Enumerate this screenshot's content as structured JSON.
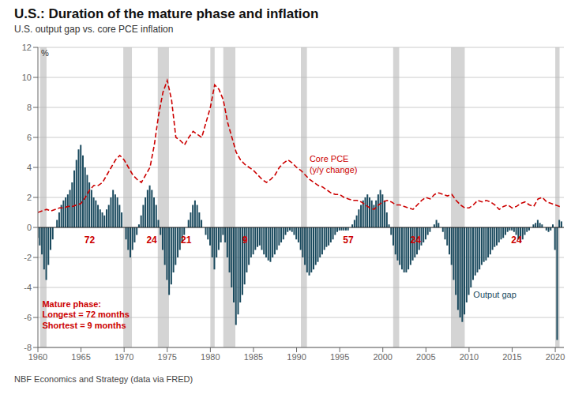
{
  "chart_data": {
    "type": "combo",
    "title": "U.S.: Duration of the mature phase and inflation",
    "subtitle": "U.S. output gap vs. core PCE inflation",
    "footer": "NBF Economics and Strategy (data via FRED)",
    "ylabel": "%",
    "ylim": [
      -8,
      12
    ],
    "yticks": [
      -8,
      -6,
      -4,
      -2,
      0,
      2,
      4,
      6,
      8,
      10,
      12
    ],
    "xlim": [
      1960,
      2021
    ],
    "xticks": [
      1960,
      1965,
      1970,
      1975,
      1980,
      1985,
      1990,
      1995,
      2000,
      2005,
      2010,
      2015,
      2020
    ],
    "grid": "y",
    "hlines": [
      0
    ],
    "recession_color": "#b8b8b8",
    "recessions": [
      [
        1960.25,
        1961.0
      ],
      [
        1969.9,
        1970.9
      ],
      [
        1973.9,
        1975.2
      ],
      [
        1980.0,
        1980.5
      ],
      [
        1981.5,
        1982.9
      ],
      [
        1990.5,
        1991.2
      ],
      [
        2001.2,
        2001.9
      ],
      [
        2007.9,
        2009.5
      ],
      [
        2020.0,
        2020.5
      ]
    ],
    "number_labels": [
      {
        "x": 1966.0,
        "y": -0.5,
        "text": "72",
        "color": "#cc0000"
      },
      {
        "x": 1973.2,
        "y": -0.5,
        "text": "24",
        "color": "#cc0000"
      },
      {
        "x": 1977.2,
        "y": -0.5,
        "text": "21",
        "color": "#cc0000"
      },
      {
        "x": 1984.0,
        "y": -0.5,
        "text": "9",
        "color": "#cc0000"
      },
      {
        "x": 1996.0,
        "y": -0.5,
        "text": "57",
        "color": "#cc0000"
      },
      {
        "x": 2003.8,
        "y": -0.5,
        "text": "24",
        "color": "#cc0000"
      },
      {
        "x": 2015.5,
        "y": -0.5,
        "text": "24",
        "color": "#cc0000"
      }
    ],
    "annotations": [
      {
        "x": 1991.5,
        "y": 4.2,
        "text": "Core PCE\n(y/y change)",
        "color": "#cc0000"
      },
      {
        "x": 2010.5,
        "y": -4.5,
        "text": "Output gap",
        "color": "#1a4a5e"
      }
    ],
    "notes": [
      {
        "x": 1960.5,
        "y": -4.8,
        "text": "Mature phase:\nLongest = 72 months\nShortest = 9 months",
        "color": "#cc0000"
      }
    ],
    "series": [
      {
        "type": "bar",
        "color": "#1a4a5e",
        "x": [
          1960.0,
          1960.25,
          1960.5,
          1960.75,
          1961.0,
          1961.25,
          1961.5,
          1961.75,
          1962.0,
          1962.25,
          1962.5,
          1962.75,
          1963.0,
          1963.25,
          1963.5,
          1963.75,
          1964.0,
          1964.25,
          1964.5,
          1964.75,
          1965.0,
          1965.25,
          1965.5,
          1965.75,
          1966.0,
          1966.25,
          1966.5,
          1966.75,
          1967.0,
          1967.25,
          1967.5,
          1967.75,
          1968.0,
          1968.25,
          1968.5,
          1968.75,
          1969.0,
          1969.25,
          1969.5,
          1969.75,
          1970.0,
          1970.25,
          1970.5,
          1970.75,
          1971.0,
          1971.25,
          1971.5,
          1971.75,
          1972.0,
          1972.25,
          1972.5,
          1972.75,
          1973.0,
          1973.25,
          1973.5,
          1973.75,
          1974.0,
          1974.25,
          1974.5,
          1974.75,
          1975.0,
          1975.25,
          1975.5,
          1975.75,
          1976.0,
          1976.25,
          1976.5,
          1976.75,
          1977.0,
          1977.25,
          1977.5,
          1977.75,
          1978.0,
          1978.25,
          1978.5,
          1978.75,
          1979.0,
          1979.25,
          1979.5,
          1979.75,
          1980.0,
          1980.25,
          1980.5,
          1980.75,
          1981.0,
          1981.25,
          1981.5,
          1981.75,
          1982.0,
          1982.25,
          1982.5,
          1982.75,
          1983.0,
          1983.25,
          1983.5,
          1983.75,
          1984.0,
          1984.25,
          1984.5,
          1984.75,
          1985.0,
          1985.25,
          1985.5,
          1985.75,
          1986.0,
          1986.25,
          1986.5,
          1986.75,
          1987.0,
          1987.25,
          1987.5,
          1987.75,
          1988.0,
          1988.25,
          1988.5,
          1988.75,
          1989.0,
          1989.25,
          1989.5,
          1989.75,
          1990.0,
          1990.25,
          1990.5,
          1990.75,
          1991.0,
          1991.25,
          1991.5,
          1991.75,
          1992.0,
          1992.25,
          1992.5,
          1992.75,
          1993.0,
          1993.25,
          1993.5,
          1993.75,
          1994.0,
          1994.25,
          1994.5,
          1994.75,
          1995.0,
          1995.25,
          1995.5,
          1995.75,
          1996.0,
          1996.25,
          1996.5,
          1996.75,
          1997.0,
          1997.25,
          1997.5,
          1997.75,
          1998.0,
          1998.25,
          1998.5,
          1998.75,
          1999.0,
          1999.25,
          1999.5,
          1999.75,
          2000.0,
          2000.25,
          2000.5,
          2000.75,
          2001.0,
          2001.25,
          2001.5,
          2001.75,
          2002.0,
          2002.25,
          2002.5,
          2002.75,
          2003.0,
          2003.25,
          2003.5,
          2003.75,
          2004.0,
          2004.25,
          2004.5,
          2004.75,
          2005.0,
          2005.25,
          2005.5,
          2005.75,
          2006.0,
          2006.25,
          2006.5,
          2006.75,
          2007.0,
          2007.25,
          2007.5,
          2007.75,
          2008.0,
          2008.25,
          2008.5,
          2008.75,
          2009.0,
          2009.25,
          2009.5,
          2009.75,
          2010.0,
          2010.25,
          2010.5,
          2010.75,
          2011.0,
          2011.25,
          2011.5,
          2011.75,
          2012.0,
          2012.25,
          2012.5,
          2012.75,
          2013.0,
          2013.25,
          2013.5,
          2013.75,
          2014.0,
          2014.25,
          2014.5,
          2014.75,
          2015.0,
          2015.25,
          2015.5,
          2015.75,
          2016.0,
          2016.25,
          2016.5,
          2016.75,
          2017.0,
          2017.25,
          2017.5,
          2017.75,
          2018.0,
          2018.25,
          2018.5,
          2018.75,
          2019.0,
          2019.25,
          2019.5,
          2019.75,
          2020.0,
          2020.25,
          2020.5,
          2020.75
        ],
        "values": [
          -0.7,
          -1.2,
          -1.8,
          -2.8,
          -3.5,
          -2.5,
          -1.5,
          -0.8,
          0.0,
          0.5,
          1.0,
          1.5,
          1.8,
          2.0,
          2.2,
          2.5,
          3.0,
          3.8,
          4.5,
          5.2,
          5.5,
          4.8,
          4.0,
          3.5,
          3.0,
          2.5,
          2.0,
          1.8,
          1.5,
          1.2,
          1.0,
          0.8,
          1.2,
          1.5,
          2.0,
          2.5,
          2.2,
          2.0,
          1.5,
          1.0,
          0.0,
          -0.8,
          -1.5,
          -2.0,
          -1.5,
          -1.0,
          -0.5,
          0.2,
          0.8,
          1.5,
          2.0,
          2.5,
          2.8,
          2.5,
          2.0,
          1.5,
          0.5,
          -0.5,
          -1.5,
          -2.5,
          -3.5,
          -4.5,
          -3.8,
          -3.0,
          -2.5,
          -2.0,
          -1.5,
          -1.0,
          -0.5,
          0.0,
          0.5,
          1.0,
          1.5,
          1.8,
          1.5,
          1.0,
          0.5,
          0.0,
          -0.5,
          -0.8,
          -1.2,
          -2.0,
          -2.8,
          -2.0,
          -1.5,
          -1.0,
          -0.5,
          -1.0,
          -2.0,
          -3.0,
          -4.0,
          -5.0,
          -6.5,
          -5.8,
          -5.0,
          -4.5,
          -3.8,
          -3.0,
          -2.5,
          -2.0,
          -1.8,
          -1.5,
          -1.3,
          -1.2,
          -1.5,
          -1.8,
          -2.0,
          -2.2,
          -2.3,
          -2.0,
          -1.8,
          -1.5,
          -1.2,
          -1.0,
          -0.8,
          -0.5,
          -0.3,
          -0.2,
          -0.3,
          -0.5,
          -0.8,
          -1.0,
          -1.5,
          -2.0,
          -2.5,
          -3.0,
          -3.2,
          -3.0,
          -2.8,
          -2.5,
          -2.3,
          -2.0,
          -1.8,
          -1.5,
          -1.3,
          -1.2,
          -1.0,
          -0.8,
          -0.5,
          -0.3,
          -0.2,
          -0.2,
          -0.2,
          -0.2,
          -0.2,
          0.0,
          0.2,
          0.5,
          0.8,
          1.2,
          1.5,
          1.8,
          2.0,
          2.2,
          2.0,
          1.8,
          1.5,
          1.8,
          2.2,
          2.5,
          2.2,
          1.8,
          1.0,
          0.2,
          -0.5,
          -1.2,
          -1.8,
          -2.2,
          -2.5,
          -2.8,
          -3.0,
          -3.0,
          -2.8,
          -2.5,
          -2.2,
          -2.0,
          -1.8,
          -1.5,
          -1.2,
          -1.0,
          -0.8,
          -0.5,
          -0.3,
          0.0,
          0.2,
          0.5,
          0.3,
          0.0,
          -0.3,
          -0.8,
          -1.2,
          -1.8,
          -2.5,
          -3.5,
          -4.5,
          -5.5,
          -6.0,
          -6.3,
          -5.8,
          -5.0,
          -4.5,
          -4.0,
          -3.5,
          -3.2,
          -3.0,
          -2.8,
          -2.5,
          -2.3,
          -2.2,
          -2.0,
          -1.8,
          -1.5,
          -1.3,
          -1.2,
          -1.0,
          -0.8,
          -0.7,
          -0.5,
          -0.3,
          -0.2,
          -0.2,
          -0.3,
          -0.5,
          -0.8,
          -1.0,
          -0.8,
          -0.5,
          -0.3,
          -0.2,
          0.0,
          0.2,
          0.3,
          0.5,
          0.3,
          0.2,
          0.0,
          -0.2,
          -0.3,
          -0.2,
          0.2,
          -1.5,
          -7.5,
          0.5,
          0.4
        ]
      },
      {
        "type": "line",
        "color": "#cc0000",
        "line_style": "dashed",
        "x": [
          1960.0,
          1960.5,
          1961.0,
          1961.5,
          1962.0,
          1962.5,
          1963.0,
          1963.5,
          1964.0,
          1964.5,
          1965.0,
          1965.5,
          1966.0,
          1966.5,
          1967.0,
          1967.5,
          1968.0,
          1968.5,
          1969.0,
          1969.5,
          1970.0,
          1970.5,
          1971.0,
          1971.5,
          1972.0,
          1972.5,
          1973.0,
          1973.5,
          1974.0,
          1974.5,
          1975.0,
          1975.5,
          1976.0,
          1976.5,
          1977.0,
          1977.5,
          1978.0,
          1978.5,
          1979.0,
          1979.5,
          1980.0,
          1980.5,
          1981.0,
          1981.5,
          1982.0,
          1982.5,
          1983.0,
          1983.5,
          1984.0,
          1984.5,
          1985.0,
          1985.5,
          1986.0,
          1986.5,
          1987.0,
          1987.5,
          1988.0,
          1988.5,
          1989.0,
          1989.5,
          1990.0,
          1990.5,
          1991.0,
          1991.5,
          1992.0,
          1992.5,
          1993.0,
          1993.5,
          1994.0,
          1994.5,
          1995.0,
          1995.5,
          1996.0,
          1996.5,
          1997.0,
          1997.5,
          1998.0,
          1998.5,
          1999.0,
          1999.5,
          2000.0,
          2000.5,
          2001.0,
          2001.5,
          2002.0,
          2002.5,
          2003.0,
          2003.5,
          2004.0,
          2004.5,
          2005.0,
          2005.5,
          2006.0,
          2006.5,
          2007.0,
          2007.5,
          2008.0,
          2008.5,
          2009.0,
          2009.5,
          2010.0,
          2010.5,
          2011.0,
          2011.5,
          2012.0,
          2012.5,
          2013.0,
          2013.5,
          2014.0,
          2014.5,
          2015.0,
          2015.5,
          2016.0,
          2016.5,
          2017.0,
          2017.5,
          2018.0,
          2018.5,
          2019.0,
          2019.5,
          2020.0,
          2020.5,
          2020.75
        ],
        "values": [
          1.0,
          1.1,
          1.2,
          1.1,
          1.2,
          1.3,
          1.3,
          1.4,
          1.4,
          1.5,
          1.6,
          2.0,
          2.5,
          2.8,
          2.8,
          3.0,
          3.5,
          4.0,
          4.5,
          4.8,
          4.5,
          4.0,
          3.5,
          3.2,
          3.0,
          3.5,
          4.0,
          5.5,
          7.5,
          9.0,
          9.8,
          8.5,
          6.0,
          5.8,
          5.5,
          6.0,
          6.4,
          6.2,
          6.0,
          7.0,
          8.0,
          9.5,
          9.2,
          8.5,
          7.0,
          6.0,
          5.0,
          4.5,
          4.2,
          4.0,
          3.8,
          3.5,
          3.2,
          3.0,
          3.2,
          3.5,
          4.0,
          4.3,
          4.5,
          4.3,
          4.0,
          3.8,
          3.5,
          3.2,
          3.0,
          2.8,
          2.7,
          2.5,
          2.3,
          2.2,
          2.2,
          2.0,
          1.9,
          1.8,
          1.8,
          1.7,
          1.5,
          1.3,
          1.2,
          1.5,
          1.7,
          1.8,
          1.7,
          1.5,
          1.5,
          1.4,
          1.3,
          1.2,
          1.5,
          1.8,
          2.0,
          1.9,
          2.2,
          2.3,
          2.2,
          2.1,
          2.2,
          1.8,
          1.5,
          1.3,
          1.3,
          1.5,
          1.8,
          1.7,
          1.8,
          1.7,
          1.5,
          1.2,
          1.4,
          1.5,
          1.3,
          1.4,
          1.6,
          1.7,
          1.5,
          1.4,
          1.9,
          2.0,
          1.7,
          1.6,
          1.5,
          1.4,
          1.4
        ]
      }
    ]
  }
}
